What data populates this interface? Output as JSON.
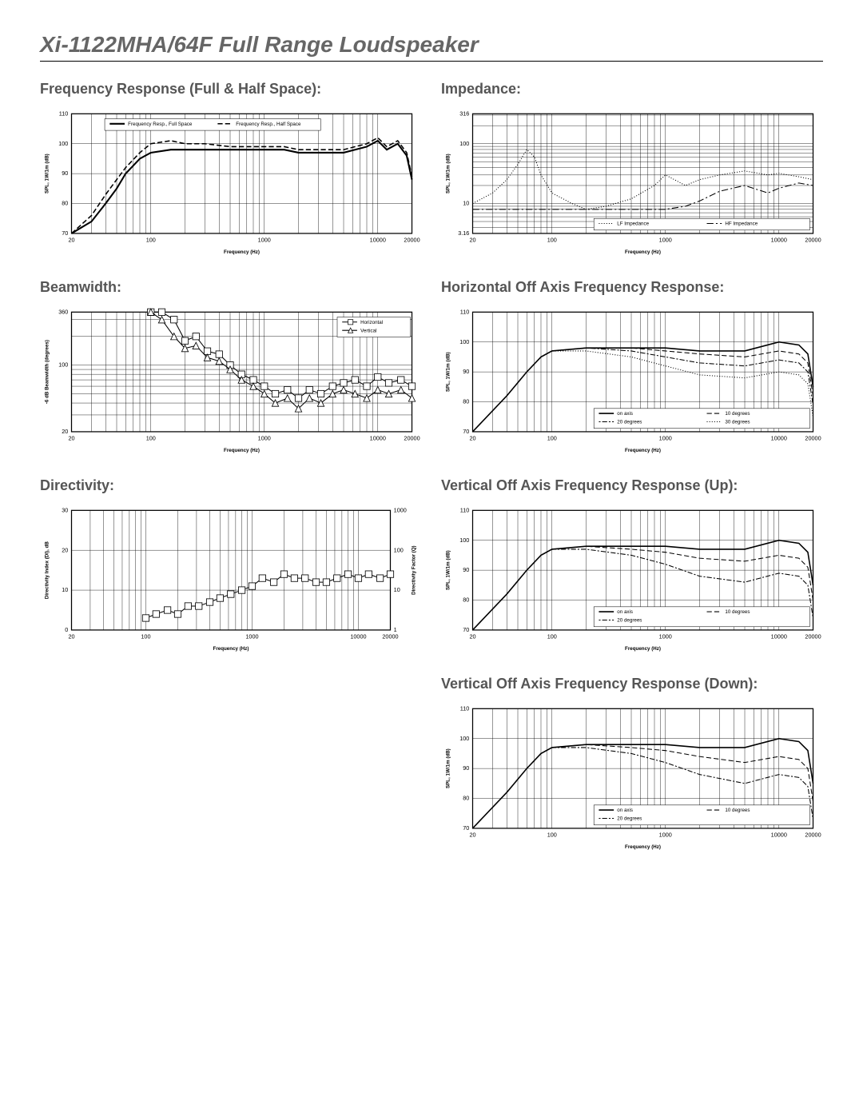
{
  "page_title": "Xi-1122MHA/64F Full Range Loudspeaker",
  "background_color": "#ffffff",
  "text_color_title": "#666666",
  "text_color_heading": "#555555",
  "text_color": "#000000",
  "divider_color": "#000000",
  "charts": {
    "freq_response": {
      "title": "Frequency Response (Full & Half Space):",
      "type": "line",
      "xlabel": "Frequency (Hz)",
      "ylabel": "SPL, 1W/1m (dB)",
      "xscale": "log",
      "xlim": [
        20,
        20000
      ],
      "ylim": [
        70,
        110
      ],
      "ytick_step": 10,
      "xticks": [
        20,
        100,
        1000,
        10000,
        20000
      ],
      "grid_color": "#000000",
      "background_color": "#ffffff",
      "series": [
        {
          "name": "Frequency Resp., Full Space",
          "color": "#000000",
          "line_width": 2,
          "dash": "none",
          "x": [
            20,
            30,
            40,
            50,
            60,
            80,
            100,
            150,
            200,
            300,
            500,
            800,
            1000,
            1500,
            2000,
            3000,
            5000,
            8000,
            10000,
            12000,
            15000,
            18000,
            20000
          ],
          "y": [
            70,
            74,
            80,
            85,
            90,
            95,
            97,
            98,
            98,
            98,
            98,
            98,
            98,
            98,
            97,
            97,
            97,
            99,
            101,
            98,
            100,
            96,
            88
          ]
        },
        {
          "name": "Frequency Resp., Half Space",
          "color": "#000000",
          "line_width": 1.5,
          "dash": "6,3",
          "x": [
            20,
            30,
            40,
            50,
            60,
            80,
            100,
            150,
            200,
            300,
            500,
            800,
            1000,
            1500,
            2000,
            3000,
            5000,
            8000,
            10000,
            12000,
            15000,
            18000,
            20000
          ],
          "y": [
            70,
            76,
            83,
            88,
            92,
            97,
            100,
            101,
            100,
            100,
            99,
            99,
            99,
            99,
            98,
            98,
            98,
            100,
            102,
            99,
            101,
            97,
            89
          ]
        }
      ],
      "legend_pos": "top-inset"
    },
    "impedance": {
      "title": "Impedance:",
      "type": "line",
      "xlabel": "Frequency (Hz)",
      "ylabel": "SPL, 1W/1m (dB)",
      "xscale": "log",
      "yscale": "log",
      "xlim": [
        20,
        20000
      ],
      "ylim": [
        3.16,
        316
      ],
      "yticks": [
        3.16,
        10,
        100,
        316
      ],
      "xticks": [
        20,
        100,
        1000,
        10000,
        20000
      ],
      "grid_color": "#000000",
      "background_color": "#ffffff",
      "series": [
        {
          "name": "LF Impedance",
          "color": "#000000",
          "line_width": 1,
          "dash": "1,2",
          "x": [
            20,
            30,
            40,
            50,
            60,
            70,
            80,
            100,
            150,
            200,
            300,
            500,
            800,
            1000,
            1500,
            2000,
            3000,
            5000,
            8000,
            10000,
            15000,
            20000
          ],
          "y": [
            10,
            15,
            25,
            45,
            80,
            60,
            30,
            15,
            10,
            8,
            9,
            12,
            20,
            30,
            20,
            25,
            30,
            35,
            30,
            32,
            28,
            25
          ]
        },
        {
          "name": "HF Impedance",
          "color": "#000000",
          "line_width": 1,
          "dash": "8,3,2,3",
          "x": [
            20,
            50,
            100,
            200,
            500,
            1000,
            1500,
            2000,
            3000,
            5000,
            8000,
            10000,
            15000,
            20000
          ],
          "y": [
            8,
            8,
            8,
            8,
            8,
            8,
            9,
            11,
            16,
            20,
            15,
            18,
            22,
            20
          ]
        }
      ],
      "legend_pos": "bottom-right-inset"
    },
    "beamwidth": {
      "title": "Beamwidth:",
      "type": "line-markers",
      "xlabel": "Frequency (Hz)",
      "ylabel": "-6 dB Beamwidth (degrees)",
      "xscale": "log",
      "yscale": "log",
      "xlim": [
        20,
        20000
      ],
      "ylim": [
        20,
        360
      ],
      "yticks": [
        20,
        100,
        360
      ],
      "xticks": [
        20,
        100,
        1000,
        10000,
        20000
      ],
      "grid_color": "#000000",
      "background_color": "#ffffff",
      "series": [
        {
          "name": "Horizontal",
          "color": "#000000",
          "line_width": 1,
          "dash": "none",
          "marker": "square",
          "marker_size": 4,
          "x": [
            100,
            125,
            160,
            200,
            250,
            315,
            400,
            500,
            630,
            800,
            1000,
            1250,
            1600,
            2000,
            2500,
            3150,
            4000,
            5000,
            6300,
            8000,
            10000,
            12500,
            16000,
            20000
          ],
          "y": [
            360,
            360,
            300,
            180,
            200,
            140,
            130,
            100,
            80,
            70,
            60,
            50,
            55,
            45,
            55,
            50,
            60,
            65,
            70,
            60,
            75,
            65,
            70,
            60
          ]
        },
        {
          "name": "Vertical",
          "color": "#000000",
          "line_width": 1,
          "dash": "none",
          "marker": "triangle",
          "marker_size": 4,
          "x": [
            100,
            125,
            160,
            200,
            250,
            315,
            400,
            500,
            630,
            800,
            1000,
            1250,
            1600,
            2000,
            2500,
            3150,
            4000,
            5000,
            6300,
            8000,
            10000,
            12500,
            16000,
            20000
          ],
          "y": [
            360,
            300,
            200,
            150,
            160,
            120,
            110,
            90,
            70,
            60,
            50,
            40,
            45,
            35,
            45,
            40,
            50,
            55,
            50,
            45,
            55,
            50,
            55,
            45
          ]
        }
      ],
      "legend_pos": "top-right-inset"
    },
    "directivity": {
      "title": "Directivity:",
      "type": "line-markers",
      "xlabel": "Frequency (Hz)",
      "ylabel_left": "Directivity Index (DI), dB",
      "ylabel_right": "Directivity Factor (Q)",
      "xscale": "log",
      "xlim": [
        20,
        20000
      ],
      "ylim": [
        0,
        30
      ],
      "ytick_step": 10,
      "ylim_right": [
        1,
        1000
      ],
      "yticks_right": [
        1,
        10,
        100,
        1000
      ],
      "xticks": [
        20,
        100,
        1000,
        10000,
        20000
      ],
      "grid_color": "#000000",
      "background_color": "#ffffff",
      "series": [
        {
          "name": "DI",
          "color": "#000000",
          "line_width": 1,
          "dash": "none",
          "marker": "square",
          "marker_size": 4,
          "x": [
            100,
            125,
            160,
            200,
            250,
            315,
            400,
            500,
            630,
            800,
            1000,
            1250,
            1600,
            2000,
            2500,
            3150,
            4000,
            5000,
            6300,
            8000,
            10000,
            12500,
            16000,
            20000
          ],
          "y": [
            3,
            4,
            5,
            4,
            6,
            6,
            7,
            8,
            9,
            10,
            11,
            13,
            12,
            14,
            13,
            13,
            12,
            12,
            13,
            14,
            13,
            14,
            13,
            14
          ]
        }
      ],
      "legend_pos": "none"
    },
    "horiz_offaxis": {
      "title": "Horizontal Off Axis Frequency Response:",
      "type": "line",
      "xlabel": "Frequency (Hz)",
      "ylabel": "SPL, 1W/1m (dB)",
      "xscale": "log",
      "xlim": [
        20,
        20000
      ],
      "ylim": [
        70,
        110
      ],
      "ytick_step": 10,
      "xticks": [
        20,
        100,
        1000,
        10000,
        20000
      ],
      "grid_color": "#000000",
      "background_color": "#ffffff",
      "series": [
        {
          "name": "on axis",
          "color": "#000000",
          "line_width": 1.5,
          "dash": "none",
          "x": [
            20,
            40,
            60,
            80,
            100,
            200,
            500,
            1000,
            2000,
            5000,
            10000,
            15000,
            18000,
            20000
          ],
          "y": [
            70,
            82,
            90,
            95,
            97,
            98,
            98,
            98,
            97,
            97,
            100,
            99,
            96,
            85
          ]
        },
        {
          "name": "10 degrees",
          "color": "#000000",
          "line_width": 1,
          "dash": "6,3",
          "x": [
            20,
            40,
            60,
            80,
            100,
            200,
            500,
            1000,
            2000,
            5000,
            10000,
            15000,
            18000,
            20000
          ],
          "y": [
            70,
            82,
            90,
            95,
            97,
            98,
            98,
            97,
            96,
            95,
            97,
            96,
            93,
            82
          ]
        },
        {
          "name": "20 degrees",
          "color": "#000000",
          "line_width": 1,
          "dash": "2,2,6,2",
          "x": [
            20,
            40,
            60,
            80,
            100,
            200,
            500,
            1000,
            2000,
            5000,
            10000,
            15000,
            18000,
            20000
          ],
          "y": [
            70,
            82,
            90,
            95,
            97,
            98,
            97,
            95,
            93,
            92,
            94,
            93,
            90,
            79
          ]
        },
        {
          "name": "30 degrees",
          "color": "#000000",
          "line_width": 1,
          "dash": "1,2",
          "x": [
            20,
            40,
            60,
            80,
            100,
            200,
            500,
            1000,
            2000,
            5000,
            10000,
            15000,
            18000,
            20000
          ],
          "y": [
            70,
            82,
            90,
            95,
            97,
            97,
            95,
            92,
            89,
            88,
            90,
            89,
            86,
            75
          ]
        }
      ],
      "legend_pos": "bottom-right-inset"
    },
    "vert_offaxis_up": {
      "title": "Vertical Off Axis Frequency Response (Up):",
      "type": "line",
      "xlabel": "Frequency (Hz)",
      "ylabel": "SPL, 1W/1m (dB)",
      "xscale": "log",
      "xlim": [
        20,
        20000
      ],
      "ylim": [
        70,
        110
      ],
      "ytick_step": 10,
      "xticks": [
        20,
        100,
        1000,
        10000,
        20000
      ],
      "grid_color": "#000000",
      "background_color": "#ffffff",
      "series": [
        {
          "name": "on axis",
          "color": "#000000",
          "line_width": 1.5,
          "dash": "none",
          "x": [
            20,
            40,
            60,
            80,
            100,
            200,
            500,
            1000,
            2000,
            5000,
            10000,
            15000,
            18000,
            20000
          ],
          "y": [
            70,
            82,
            90,
            95,
            97,
            98,
            98,
            98,
            97,
            97,
            100,
            99,
            96,
            85
          ]
        },
        {
          "name": "10 degrees",
          "color": "#000000",
          "line_width": 1,
          "dash": "6,3",
          "x": [
            20,
            40,
            60,
            80,
            100,
            200,
            500,
            1000,
            2000,
            5000,
            10000,
            15000,
            18000,
            20000
          ],
          "y": [
            70,
            82,
            90,
            95,
            97,
            98,
            97,
            96,
            94,
            93,
            95,
            94,
            91,
            80
          ]
        },
        {
          "name": "20 degrees",
          "color": "#000000",
          "line_width": 1,
          "dash": "2,2,6,2",
          "x": [
            20,
            40,
            60,
            80,
            100,
            200,
            500,
            1000,
            2000,
            5000,
            10000,
            15000,
            18000,
            20000
          ],
          "y": [
            70,
            82,
            90,
            95,
            97,
            97,
            95,
            92,
            88,
            86,
            89,
            88,
            85,
            74
          ]
        }
      ],
      "legend_pos": "bottom-right-inset"
    },
    "vert_offaxis_down": {
      "title": "Vertical Off Axis Frequency Response (Down):",
      "type": "line",
      "xlabel": "Frequency (Hz)",
      "ylabel": "SPL, 1W/1m (dB)",
      "xscale": "log",
      "xlim": [
        20,
        20000
      ],
      "ylim": [
        70,
        110
      ],
      "ytick_step": 10,
      "xticks": [
        20,
        100,
        1000,
        10000,
        20000
      ],
      "grid_color": "#000000",
      "background_color": "#ffffff",
      "series": [
        {
          "name": "on axis",
          "color": "#000000",
          "line_width": 1.5,
          "dash": "none",
          "x": [
            20,
            40,
            60,
            80,
            100,
            200,
            500,
            1000,
            2000,
            5000,
            10000,
            15000,
            18000,
            20000
          ],
          "y": [
            70,
            82,
            90,
            95,
            97,
            98,
            98,
            98,
            97,
            97,
            100,
            99,
            96,
            85
          ]
        },
        {
          "name": "10 degrees",
          "color": "#000000",
          "line_width": 1,
          "dash": "6,3",
          "x": [
            20,
            40,
            60,
            80,
            100,
            200,
            500,
            1000,
            2000,
            5000,
            10000,
            15000,
            18000,
            20000
          ],
          "y": [
            70,
            82,
            90,
            95,
            97,
            98,
            97,
            96,
            94,
            92,
            94,
            93,
            90,
            79
          ]
        },
        {
          "name": "20 degrees",
          "color": "#000000",
          "line_width": 1,
          "dash": "2,2,6,2",
          "x": [
            20,
            40,
            60,
            80,
            100,
            200,
            500,
            1000,
            2000,
            5000,
            10000,
            15000,
            18000,
            20000
          ],
          "y": [
            70,
            82,
            90,
            95,
            97,
            97,
            95,
            92,
            88,
            85,
            88,
            87,
            84,
            73
          ]
        }
      ],
      "legend_pos": "bottom-right-inset"
    }
  }
}
